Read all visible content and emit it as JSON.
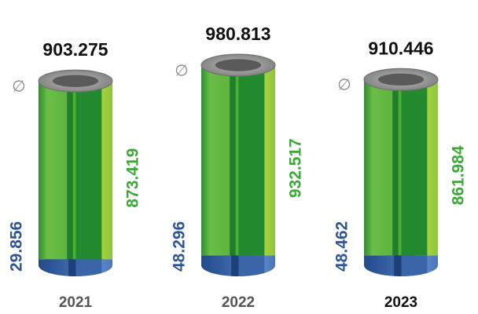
{
  "chart_data": {
    "type": "cylinder",
    "categories": [
      "2021",
      "2022",
      "2023"
    ],
    "totals": [
      903.275,
      980.813,
      910.446
    ],
    "symbol": "∅",
    "series": [
      {
        "color": "#3a65a8",
        "values": [
          29.856,
          48.296,
          48.462
        ]
      },
      {
        "color": "#4caf30",
        "values": [
          873.419,
          932.517,
          861.984
        ]
      }
    ]
  }
}
